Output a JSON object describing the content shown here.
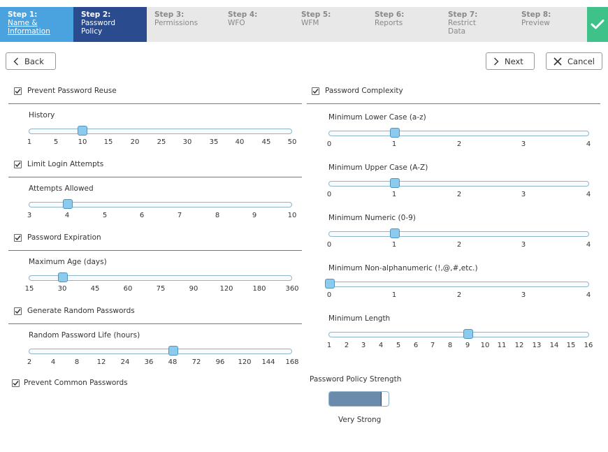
{
  "wizard": {
    "steps": [
      {
        "num": "Step 1:",
        "line1": "Name &",
        "line2": "Information",
        "state": "done"
      },
      {
        "num": "Step 2:",
        "line1": "Password",
        "line2": "Policy",
        "state": "active"
      },
      {
        "num": "Step 3:",
        "line1": "Permissions",
        "line2": "",
        "state": "todo"
      },
      {
        "num": "Step 4:",
        "line1": "WFO",
        "line2": "",
        "state": "todo"
      },
      {
        "num": "Step 5:",
        "line1": "WFM",
        "line2": "",
        "state": "todo"
      },
      {
        "num": "Step 6:",
        "line1": "Reports",
        "line2": "",
        "state": "todo"
      },
      {
        "num": "Step 7:",
        "line1": "Restrict",
        "line2": "Data",
        "state": "todo"
      },
      {
        "num": "Step 8:",
        "line1": "Preview",
        "line2": "",
        "state": "todo"
      }
    ],
    "finish_icon": "checkmark-icon",
    "colors": {
      "done": "#4aa3df",
      "active": "#2b4b8f",
      "finish": "#3ec28a"
    }
  },
  "toolbar": {
    "back_label": "Back",
    "next_label": "Next",
    "cancel_label": "Cancel"
  },
  "left": {
    "reuse": {
      "label": "Prevent Password Reuse",
      "checked": true,
      "slider": {
        "label": "History",
        "ticks": [
          "1",
          "5",
          "10",
          "15",
          "20",
          "25",
          "30",
          "35",
          "40",
          "45",
          "50"
        ],
        "value": "10"
      }
    },
    "login": {
      "label": "Limit Login Attempts",
      "checked": true,
      "slider": {
        "label": "Attempts Allowed",
        "ticks": [
          "3",
          "4",
          "5",
          "6",
          "7",
          "8",
          "9",
          "10"
        ],
        "value": "4"
      }
    },
    "expiration": {
      "label": "Password Expiration",
      "checked": true,
      "slider": {
        "label": "Maximum Age (days)",
        "ticks": [
          "15",
          "30",
          "45",
          "60",
          "75",
          "90",
          "120",
          "180",
          "360"
        ],
        "value": "30"
      }
    },
    "random": {
      "label": "Generate Random Passwords",
      "checked": true,
      "slider": {
        "label": "Random Password Life (hours)",
        "ticks": [
          "2",
          "4",
          "8",
          "12",
          "24",
          "36",
          "48",
          "72",
          "96",
          "120",
          "144",
          "168"
        ],
        "value": "48"
      }
    },
    "common": {
      "label": "Prevent Common Passwords",
      "checked": true
    }
  },
  "right": {
    "complexity": {
      "label": "Password Complexity",
      "checked": true
    },
    "lower": {
      "label": "Minimum Lower Case (a-z)",
      "ticks": [
        "0",
        "1",
        "2",
        "3",
        "4"
      ],
      "value": "1"
    },
    "upper": {
      "label": "Minimum Upper Case (A-Z)",
      "ticks": [
        "0",
        "1",
        "2",
        "3",
        "4"
      ],
      "value": "1"
    },
    "numeric": {
      "label": "Minimum Numeric (0-9)",
      "ticks": [
        "0",
        "1",
        "2",
        "3",
        "4"
      ],
      "value": "1"
    },
    "nonalpha": {
      "label": "Minimum Non-alphanumeric (!,@,#,etc.)",
      "ticks": [
        "0",
        "1",
        "2",
        "3",
        "4"
      ],
      "value": "0"
    },
    "length": {
      "label": "Minimum Length",
      "ticks": [
        "1",
        "2",
        "3",
        "4",
        "5",
        "6",
        "7",
        "8",
        "9",
        "10",
        "11",
        "12",
        "13",
        "14",
        "15",
        "16"
      ],
      "value": "9"
    },
    "strength": {
      "label": "Password Policy Strength",
      "value_text": "Very Strong",
      "level": 0.88
    }
  }
}
